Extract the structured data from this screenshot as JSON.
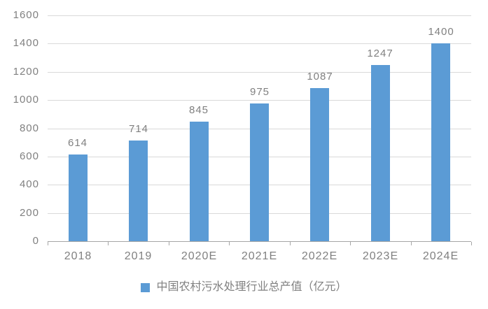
{
  "chart_data": {
    "type": "bar",
    "categories": [
      "2018",
      "2019",
      "2020E",
      "2021E",
      "2022E",
      "2023E",
      "2024E"
    ],
    "values": [
      614,
      714,
      845,
      975,
      1087,
      1247,
      1400
    ],
    "data_labels": [
      "614",
      "714",
      "845",
      "975",
      "1087",
      "1247",
      "1400"
    ],
    "title": "",
    "xlabel": "",
    "ylabel": "",
    "ylim": [
      0,
      1600
    ],
    "ytick_interval": 200,
    "ytick_labels": [
      "0",
      "200",
      "400",
      "600",
      "800",
      "1000",
      "1200",
      "1400",
      "1600"
    ],
    "grid": true,
    "legend": "中国农村污水处理行业总产值（亿元）",
    "legend_position": "bottom-center",
    "colors": {
      "bar": "#5B9BD5",
      "gridline": "#D9D9D9",
      "axis_line": "#A6A6A6",
      "text": "#808080",
      "background": "#FFFFFF",
      "legend_marker": "#5B9BD5"
    }
  }
}
